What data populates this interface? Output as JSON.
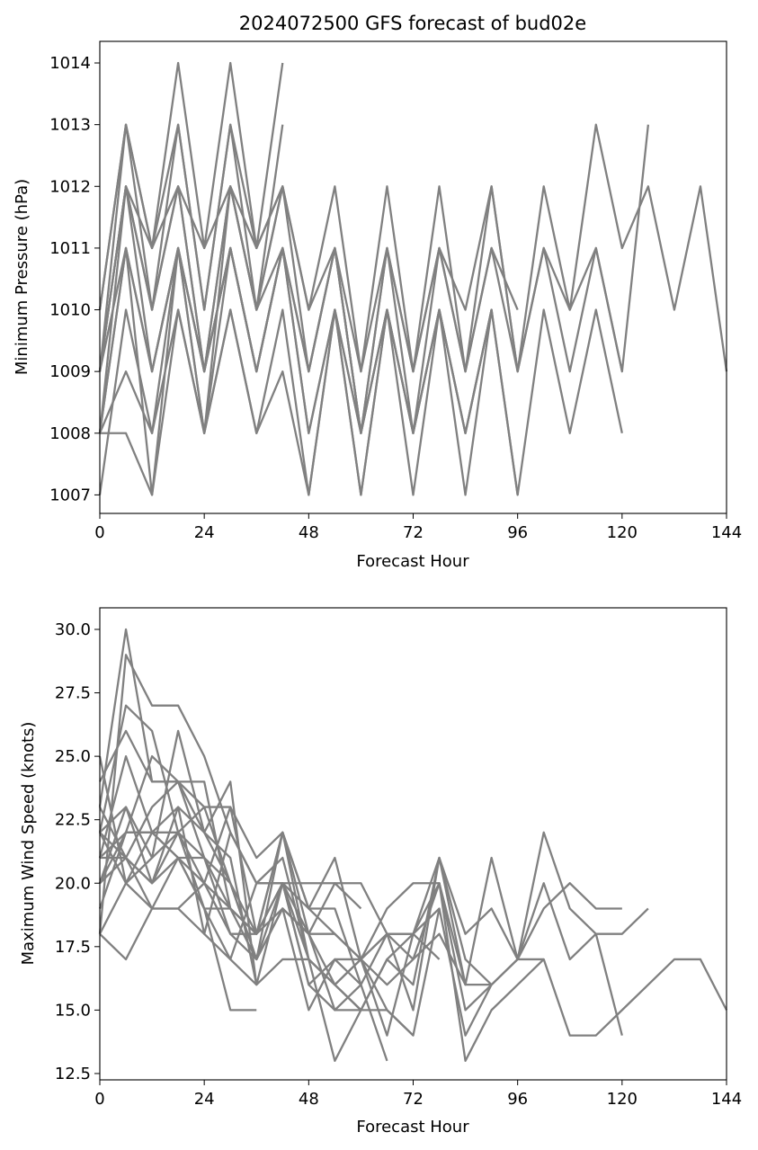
{
  "chart_data": [
    {
      "type": "line",
      "title": "2024072500 GFS forecast of bud02e",
      "xlabel": "Forecast Hour",
      "ylabel": "Minimum Pressure (hPa)",
      "xlim": [
        0,
        144
      ],
      "ylim": [
        1006.7,
        1014.35
      ],
      "xticks": [
        0,
        24,
        48,
        72,
        96,
        120,
        144
      ],
      "yticks": [
        1007,
        1008,
        1009,
        1010,
        1011,
        1012,
        1013,
        1014
      ],
      "line_color": "#808080",
      "grid": false,
      "series": [
        {
          "x": [
            0,
            6,
            12,
            18,
            24,
            30,
            36,
            42,
            48,
            54,
            60,
            66,
            72,
            78,
            84,
            90,
            96,
            102,
            108,
            114,
            120,
            126,
            132,
            138,
            144
          ],
          "y": [
            1009,
            1012,
            1011,
            1012,
            1011,
            1012,
            1011,
            1012,
            1010,
            1011,
            1009,
            1011,
            1009,
            1011,
            1010,
            1012,
            1009,
            1012,
            1010,
            1013,
            1011,
            1012,
            1010,
            1012,
            1009
          ]
        },
        {
          "x": [
            0,
            6,
            12,
            18,
            24,
            30,
            36,
            42,
            48,
            54,
            60,
            66,
            72,
            78,
            84,
            90,
            96,
            102,
            108,
            114,
            120,
            126
          ],
          "y": [
            1010,
            1013,
            1011,
            1013,
            1010,
            1013,
            1011,
            1012,
            1010,
            1012,
            1009,
            1012,
            1009,
            1012,
            1009,
            1012,
            1009,
            1011,
            1010,
            1011,
            1009,
            1013
          ]
        },
        {
          "x": [
            0,
            6,
            12,
            18,
            24,
            30,
            36,
            42,
            48,
            54,
            60,
            66,
            72,
            78,
            84,
            90,
            96,
            102,
            108,
            114,
            120
          ],
          "y": [
            1008,
            1011,
            1009,
            1011,
            1009,
            1011,
            1009,
            1011,
            1008,
            1010,
            1008,
            1010,
            1008,
            1010,
            1008,
            1010,
            1007,
            1010,
            1008,
            1010,
            1008
          ]
        },
        {
          "x": [
            0,
            6,
            12,
            18,
            24,
            30,
            36,
            42,
            48,
            54,
            60,
            66,
            72,
            78,
            84,
            90,
            96,
            102,
            108,
            114,
            120
          ],
          "y": [
            1009,
            1012,
            1010,
            1012,
            1009,
            1012,
            1010,
            1011,
            1009,
            1011,
            1008,
            1011,
            1008,
            1011,
            1009,
            1011,
            1009,
            1011,
            1009,
            1011,
            1009
          ]
        },
        {
          "x": [
            0,
            6,
            12,
            18,
            24,
            30,
            36,
            42,
            48,
            54,
            60,
            66,
            72,
            78,
            84,
            90,
            96
          ],
          "y": [
            1008,
            1011,
            1009,
            1011,
            1009,
            1011,
            1009,
            1011,
            1009,
            1011,
            1008,
            1011,
            1009,
            1011,
            1009,
            1011,
            1010
          ]
        },
        {
          "x": [
            0,
            6,
            12,
            18,
            24,
            30,
            36,
            42,
            48,
            54,
            60,
            66,
            72,
            78,
            84,
            90,
            96
          ],
          "y": [
            1007,
            1010,
            1008,
            1010,
            1008,
            1010,
            1008,
            1010,
            1007,
            1010,
            1007,
            1010,
            1007,
            1010,
            1007,
            1010,
            1007
          ]
        },
        {
          "x": [
            0,
            6,
            12,
            18,
            24,
            30,
            36,
            42,
            48,
            54,
            60,
            66,
            72,
            78,
            84,
            90
          ],
          "y": [
            1009,
            1012,
            1010,
            1012,
            1009,
            1012,
            1010,
            1012,
            1009,
            1011,
            1008,
            1010,
            1008,
            1010,
            1008,
            1010
          ]
        },
        {
          "x": [
            0,
            6,
            12,
            18,
            24,
            30,
            36,
            42,
            48,
            54,
            60,
            66,
            72,
            78,
            84,
            90
          ],
          "y": [
            1008,
            1009,
            1008,
            1011,
            1008,
            1011,
            1009,
            1011,
            1008,
            1010,
            1008,
            1010,
            1008,
            1010,
            1008,
            1010
          ]
        },
        {
          "x": [
            0,
            6,
            12,
            18,
            24,
            30,
            36,
            42,
            48,
            54,
            60,
            66
          ],
          "y": [
            1008,
            1008,
            1007,
            1010,
            1008,
            1010,
            1008,
            1009,
            1007,
            1010,
            1007,
            1010
          ]
        },
        {
          "x": [
            0,
            6,
            12,
            18,
            24,
            30,
            36,
            42
          ],
          "y": [
            1010,
            1013,
            1011,
            1014,
            1011,
            1014,
            1011,
            1014
          ]
        },
        {
          "x": [
            0,
            6,
            12,
            18,
            24,
            30,
            36,
            42
          ],
          "y": [
            1009,
            1013,
            1010,
            1013,
            1010,
            1013,
            1010,
            1013
          ]
        },
        {
          "x": [
            0,
            6,
            12,
            18,
            24,
            30,
            36,
            42
          ],
          "y": [
            1008,
            1012,
            1009,
            1011,
            1008,
            1012,
            1010,
            1012
          ]
        },
        {
          "x": [
            0,
            6,
            12,
            18,
            24,
            30,
            36,
            42
          ],
          "y": [
            1009,
            1011,
            1007,
            1011,
            1009,
            1011,
            1009,
            1011
          ]
        }
      ]
    },
    {
      "type": "line",
      "title": "",
      "xlabel": "Forecast Hour",
      "ylabel": "Maximum Wind Speed (knots)",
      "xlim": [
        0,
        144
      ],
      "ylim": [
        12.25,
        30.85
      ],
      "xticks": [
        0,
        24,
        48,
        72,
        96,
        120,
        144
      ],
      "yticks": [
        12.5,
        15.0,
        17.5,
        20.0,
        22.5,
        25.0,
        27.5,
        30.0
      ],
      "line_color": "#808080",
      "grid": false,
      "series": [
        {
          "x": [
            0,
            6,
            12,
            18,
            24,
            30,
            36,
            42,
            48,
            54,
            60,
            66,
            72,
            78,
            84,
            90,
            96,
            102,
            108,
            114,
            120,
            126,
            132,
            138,
            144
          ],
          "y": [
            18,
            29,
            27,
            27,
            25,
            22,
            20,
            20,
            19,
            18,
            17,
            16,
            17,
            20,
            13,
            15,
            16,
            17,
            14,
            14,
            15,
            16,
            17,
            17,
            15
          ]
        },
        {
          "x": [
            0,
            6,
            12,
            18,
            24,
            30,
            36,
            42,
            48,
            54,
            60,
            66,
            72,
            78,
            84,
            90,
            96,
            102,
            108,
            114,
            120,
            126
          ],
          "y": [
            22,
            27,
            26,
            22,
            23,
            20,
            18,
            22,
            18,
            16,
            15,
            17,
            16,
            21,
            18,
            19,
            17,
            22,
            19,
            18,
            18,
            19
          ]
        },
        {
          "x": [
            0,
            6,
            12,
            18,
            24,
            30,
            36,
            42,
            48,
            54,
            60,
            66,
            72,
            78,
            84,
            90,
            96,
            102,
            108,
            114,
            120
          ],
          "y": [
            20,
            23,
            21,
            26,
            22,
            20,
            17,
            22,
            19,
            21,
            17,
            18,
            18,
            20,
            15,
            16,
            17,
            20,
            17,
            18,
            14
          ]
        },
        {
          "x": [
            0,
            6,
            12,
            18,
            24,
            30,
            36,
            42,
            48,
            54,
            60,
            66,
            72,
            78,
            84,
            90,
            96,
            102,
            108,
            114,
            120
          ],
          "y": [
            21,
            25,
            22,
            22,
            21,
            18,
            18,
            20,
            16,
            15,
            15,
            15,
            14,
            19,
            14,
            16,
            17,
            19,
            20,
            19,
            19
          ]
        },
        {
          "x": [
            0,
            6,
            12,
            18,
            24,
            30,
            36,
            42,
            48,
            54,
            60,
            66,
            72,
            78,
            84
          ],
          "y": [
            23,
            21,
            23,
            24,
            23,
            23,
            21,
            22,
            17,
            16,
            17,
            19,
            20,
            20,
            16
          ]
        },
        {
          "x": [
            0,
            6,
            12,
            18,
            24,
            30,
            36,
            42,
            48,
            54,
            60,
            66,
            72,
            78,
            84,
            90
          ],
          "y": [
            22,
            23,
            20,
            22,
            20,
            18,
            17,
            19,
            15,
            17,
            16,
            18,
            15,
            21,
            17,
            16
          ]
        },
        {
          "x": [
            0,
            6,
            12,
            18,
            24,
            30,
            36,
            42,
            48,
            54,
            60,
            66,
            72,
            78,
            84,
            90
          ],
          "y": [
            24,
            26,
            24,
            24,
            21,
            19,
            17,
            20,
            16,
            17,
            17,
            18,
            17,
            18,
            16,
            16
          ]
        },
        {
          "x": [
            0,
            6,
            12,
            18,
            24,
            30,
            36,
            42,
            48,
            54,
            60,
            66,
            72,
            78,
            84,
            90,
            96,
            102
          ],
          "y": [
            19,
            22,
            25,
            24,
            22,
            21,
            16,
            20,
            17,
            16,
            15,
            17,
            18,
            21,
            16,
            21,
            17,
            17
          ]
        },
        {
          "x": [
            0,
            6,
            12,
            18,
            24,
            30,
            36,
            42,
            48,
            54,
            60,
            66,
            72,
            78
          ],
          "y": [
            21,
            22,
            22,
            21,
            19,
            19,
            18,
            19,
            18,
            18,
            17,
            14,
            18,
            19
          ]
        },
        {
          "x": [
            0,
            6,
            12,
            18,
            24,
            30,
            36,
            42,
            48,
            54,
            60,
            66,
            72,
            78
          ],
          "y": [
            20,
            21,
            20,
            21,
            21,
            20,
            17,
            19,
            18,
            20,
            20,
            18,
            18,
            17
          ]
        },
        {
          "x": [
            0,
            6,
            12,
            18,
            24,
            30,
            36,
            42,
            48,
            54,
            60,
            66
          ],
          "y": [
            18,
            17,
            19,
            19,
            20,
            19,
            18,
            20,
            18,
            15,
            16,
            13
          ]
        },
        {
          "x": [
            0,
            6,
            12,
            18,
            24,
            30,
            36,
            42,
            48,
            54,
            60,
            66,
            72
          ],
          "y": [
            22,
            21,
            19,
            21,
            19,
            17,
            16,
            17,
            17,
            16,
            17,
            15,
            14
          ]
        },
        {
          "x": [
            0,
            6,
            12,
            18,
            24,
            30,
            36,
            42,
            48,
            54,
            60
          ],
          "y": [
            23,
            30,
            24,
            24,
            24,
            19,
            18,
            22,
            19,
            19,
            16
          ]
        },
        {
          "x": [
            0,
            6,
            12,
            18,
            24,
            30,
            36,
            42,
            48,
            54,
            60
          ],
          "y": [
            25,
            20,
            19,
            19,
            18,
            17,
            20,
            20,
            20,
            20,
            19
          ]
        },
        {
          "x": [
            0,
            6,
            12,
            18,
            24,
            30,
            36,
            42,
            48,
            54,
            60
          ],
          "y": [
            21,
            21,
            20,
            23,
            18,
            22,
            20,
            21,
            17,
            13,
            15
          ]
        },
        {
          "x": [
            0,
            6,
            12,
            18,
            24,
            30,
            36
          ],
          "y": [
            22,
            20,
            21,
            22,
            19,
            15,
            15
          ]
        },
        {
          "x": [
            0,
            6,
            12,
            18,
            24,
            30,
            36
          ],
          "y": [
            20,
            22,
            22,
            23,
            22,
            24,
            16
          ]
        },
        {
          "x": [
            0,
            6,
            12,
            18,
            24,
            30,
            36
          ],
          "y": [
            18,
            20,
            22,
            21,
            20,
            23,
            18
          ]
        }
      ]
    }
  ]
}
